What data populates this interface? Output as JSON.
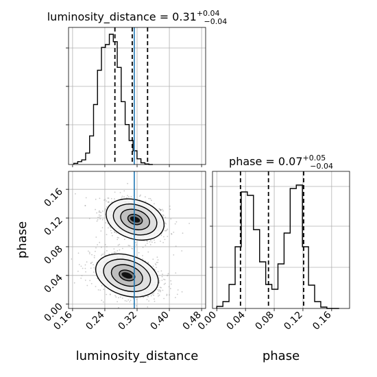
{
  "chart_data": {
    "type": "corner",
    "colors": {
      "truth": "#1f77b4",
      "hist": "#000000",
      "grid": "#b0b0b0",
      "scatter": "#9a9a9a"
    },
    "grid": true,
    "parameters": [
      {
        "name": "luminosity_distance",
        "axis_label": "luminosity_distance",
        "title_lhs": "luminosity_distance = 0.31",
        "err_plus": "+0.04",
        "err_minus": "−0.04",
        "xlim": [
          0.15,
          0.49
        ],
        "ticks": [
          0.16,
          0.24,
          0.32,
          0.4,
          0.48
        ],
        "tick_labels": [
          "0.16",
          "0.24",
          "0.32",
          "0.40",
          "0.48"
        ],
        "quantiles": [
          0.265,
          0.308,
          0.346
        ],
        "truth": 0.313,
        "hist": {
          "bin_start": 0.163,
          "bin_width": 0.0098,
          "counts": [
            2,
            5,
            8,
            20,
            50,
            105,
            165,
            205,
            210,
            228,
            215,
            170,
            110,
            70,
            42,
            24,
            10,
            3,
            1,
            0
          ],
          "ymax": 240
        }
      },
      {
        "name": "phase",
        "axis_label": "phase",
        "title_lhs": "phase = 0.07",
        "err_plus": "+0.05",
        "err_minus": "−0.04",
        "xlim": [
          -0.006,
          0.185
        ],
        "ticks": [
          0.0,
          0.04,
          0.08,
          0.12,
          0.16
        ],
        "tick_labels": [
          "0.00",
          "0.04",
          "0.08",
          "0.12",
          "0.16"
        ],
        "quantiles": [
          0.033,
          0.072,
          0.121
        ],
        "hist": {
          "bin_start": 0.0,
          "bin_width": 0.00852,
          "counts": [
            3,
            10,
            35,
            90,
            170,
            165,
            115,
            68,
            35,
            28,
            65,
            110,
            175,
            180,
            90,
            34,
            10,
            2,
            0,
            0
          ],
          "ymax": 200
        }
      }
    ],
    "joint": {
      "x": "luminosity_distance",
      "y": "phase",
      "ylim": [
        -0.006,
        0.185
      ],
      "yticks": [
        0.0,
        0.04,
        0.08,
        0.12,
        0.16
      ],
      "ytick_labels": [
        "0.00",
        "0.04",
        "0.08",
        "0.12",
        "0.16"
      ],
      "modes": [
        {
          "mean_x": 0.315,
          "mean_y": 0.118,
          "sd_x": 0.037,
          "sd_y": 0.0135,
          "corr": -0.35
        },
        {
          "mean_x": 0.295,
          "mean_y": 0.04,
          "sd_x": 0.04,
          "sd_y": 0.014,
          "corr": -0.35
        }
      ],
      "contour_levels_sigma": [
        0.5,
        1.0,
        1.5,
        2.0
      ]
    }
  }
}
